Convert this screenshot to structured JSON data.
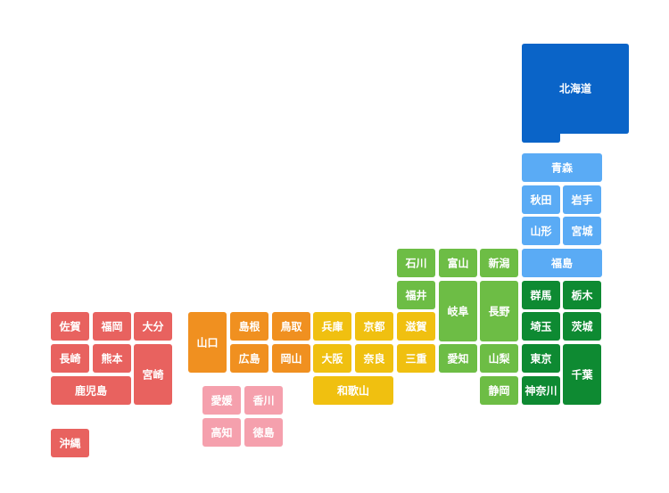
{
  "regions": [
    {
      "color": "#0a64c8",
      "prefectures": [
        "北海道"
      ]
    },
    {
      "color": "#5aabf5",
      "prefectures": [
        "青森",
        "秋田",
        "岩手",
        "山形",
        "宮城",
        "福島"
      ]
    },
    {
      "color": "#0e8a32",
      "prefectures": [
        "群馬",
        "栃木",
        "埼玉",
        "茨城",
        "東京",
        "千葉",
        "神奈川"
      ]
    },
    {
      "color": "#6dbd45",
      "prefectures": [
        "石川",
        "富山",
        "新潟",
        "福井",
        "岐阜",
        "長野",
        "愛知",
        "山梨",
        "静岡"
      ]
    },
    {
      "color": "#f0c010",
      "prefectures": [
        "滋賀",
        "兵庫",
        "京都",
        "大阪",
        "奈良",
        "三重",
        "和歌山"
      ]
    },
    {
      "color": "#f09020",
      "prefectures": [
        "山口",
        "島根",
        "鳥取",
        "広島",
        "岡山"
      ]
    },
    {
      "color": "#f5a0ad",
      "prefectures": [
        "愛媛",
        "香川",
        "高知",
        "徳島"
      ]
    },
    {
      "color": "#e8625f",
      "prefectures": [
        "佐賀",
        "福岡",
        "大分",
        "長崎",
        "熊本",
        "宮崎",
        "鹿児島",
        "沖縄"
      ]
    }
  ]
}
